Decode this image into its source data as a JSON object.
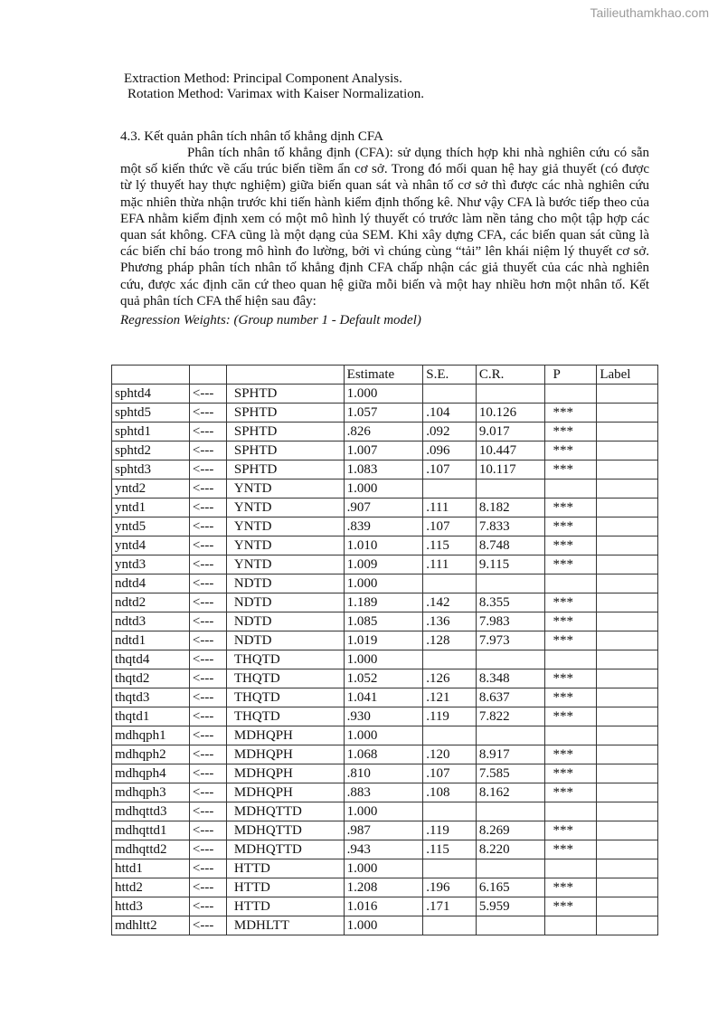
{
  "watermark": "Tailieuthamkhao.com",
  "notes": {
    "extraction": "Extraction Method: Principal Component Analysis.",
    "rotation": "Rotation Method: Varimax with Kaiser Normalization."
  },
  "section_heading": "4.3. Kết quản phân tích nhân tố khẳng dịnh CFA",
  "paragraph": "Phân tích nhân tố khẳng định (CFA): sử dụng thích hợp khi nhà nghiên cứu có sẵn một số kiến thức về cấu trúc biến tiềm ẩn cơ sở. Trong đó mối quan hệ hay giả thuyết (có được từ lý thuyết hay thực nghiệm) giữa biến quan sát và nhân tố cơ sở thì được các nhà nghiên cứu mặc nhiên thừa nhận trước khi tiến hành kiểm định thống kê. Như vậy CFA là bước tiếp theo của EFA nhằm kiểm định xem có một mô hình lý thuyết có trước làm nền tảng cho một tập hợp các quan sát không. CFA cũng là một dạng của SEM. Khi xây dựng CFA, các biến quan sát cũng là các biến chỉ báo trong mô hình đo lường, bởi vì chúng cùng “tải” lên khái niệm lý thuyết cơ sở. Phương pháp phân tích nhân tố khẳng định CFA chấp nhận các giả thuyết của các nhà nghiên cứu, được xác định căn cứ theo quan hệ giữa mỗi biến và một hay nhiều hơn một nhân tố. Kết quả phân tích CFA thể hiện sau đây:",
  "table_caption": "Regression Weights: (Group number 1 - Default model)",
  "table": {
    "headers": [
      "",
      "",
      "",
      "Estimate",
      "S.E.",
      "C.R.",
      "P",
      "Label"
    ],
    "rows": [
      [
        "sphtd4",
        "<---",
        "SPHTD",
        "1.000",
        "",
        "",
        "",
        ""
      ],
      [
        "sphtd5",
        "<---",
        "SPHTD",
        "1.057",
        ".104",
        "10.126",
        "***",
        ""
      ],
      [
        "sphtd1",
        "<---",
        "SPHTD",
        ".826",
        ".092",
        "9.017",
        "***",
        ""
      ],
      [
        "sphtd2",
        "<---",
        "SPHTD",
        "1.007",
        ".096",
        "10.447",
        "***",
        ""
      ],
      [
        "sphtd3",
        "<---",
        "SPHTD",
        "1.083",
        ".107",
        "10.117",
        "***",
        ""
      ],
      [
        "yntd2",
        "<---",
        "YNTD",
        "1.000",
        "",
        "",
        "",
        ""
      ],
      [
        "yntd1",
        "<---",
        "YNTD",
        ".907",
        ".111",
        "8.182",
        "***",
        ""
      ],
      [
        "yntd5",
        "<---",
        "YNTD",
        ".839",
        ".107",
        "7.833",
        "***",
        ""
      ],
      [
        "yntd4",
        "<---",
        "YNTD",
        "1.010",
        ".115",
        "8.748",
        "***",
        ""
      ],
      [
        "yntd3",
        "<---",
        "YNTD",
        "1.009",
        ".111",
        "9.115",
        "***",
        ""
      ],
      [
        "ndtd4",
        "<---",
        "NDTD",
        "1.000",
        "",
        "",
        "",
        ""
      ],
      [
        "ndtd2",
        "<---",
        "NDTD",
        "1.189",
        ".142",
        "8.355",
        "***",
        ""
      ],
      [
        "ndtd3",
        "<---",
        "NDTD",
        "1.085",
        ".136",
        "7.983",
        "***",
        ""
      ],
      [
        "ndtd1",
        "<---",
        "NDTD",
        "1.019",
        ".128",
        "7.973",
        "***",
        ""
      ],
      [
        "thqtd4",
        "<---",
        "THQTD",
        "1.000",
        "",
        "",
        "",
        ""
      ],
      [
        "thqtd2",
        "<---",
        "THQTD",
        "1.052",
        ".126",
        "8.348",
        "***",
        ""
      ],
      [
        "thqtd3",
        "<---",
        "THQTD",
        "1.041",
        ".121",
        "8.637",
        "***",
        ""
      ],
      [
        "thqtd1",
        "<---",
        "THQTD",
        ".930",
        ".119",
        "7.822",
        "***",
        ""
      ],
      [
        "mdhqph1",
        "<---",
        "MDHQPH",
        "1.000",
        "",
        "",
        "",
        ""
      ],
      [
        "mdhqph2",
        "<---",
        "MDHQPH",
        "1.068",
        ".120",
        "8.917",
        "***",
        ""
      ],
      [
        "mdhqph4",
        "<---",
        "MDHQPH",
        ".810",
        ".107",
        "7.585",
        "***",
        ""
      ],
      [
        "mdhqph3",
        "<---",
        "MDHQPH",
        ".883",
        ".108",
        "8.162",
        "***",
        ""
      ],
      [
        "mdhqttd3",
        "<---",
        "MDHQTTD",
        "1.000",
        "",
        "",
        "",
        ""
      ],
      [
        "mdhqttd1",
        "<---",
        "MDHQTTD",
        ".987",
        ".119",
        "8.269",
        "***",
        ""
      ],
      [
        "mdhqttd2",
        "<---",
        "MDHQTTD",
        ".943",
        ".115",
        "8.220",
        "***",
        ""
      ],
      [
        "httd1",
        "<---",
        "HTTD",
        "1.000",
        "",
        "",
        "",
        ""
      ],
      [
        "httd2",
        "<---",
        "HTTD",
        "1.208",
        ".196",
        "6.165",
        "***",
        ""
      ],
      [
        "httd3",
        "<---",
        "HTTD",
        "1.016",
        ".171",
        "5.959",
        "***",
        ""
      ],
      [
        "mdhltt2",
        "<---",
        "MDHLTT",
        "1.000",
        "",
        "",
        "",
        ""
      ]
    ]
  }
}
